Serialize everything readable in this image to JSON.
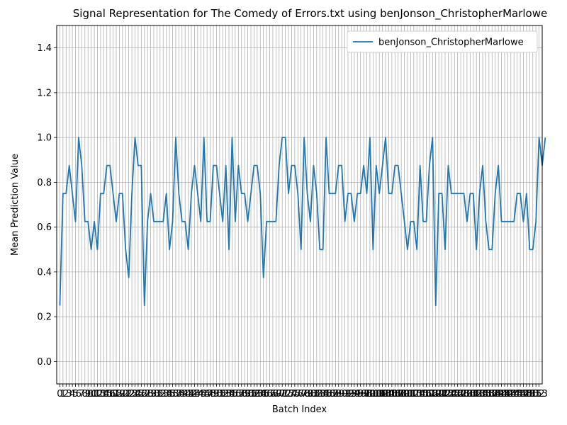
{
  "chart_data": {
    "type": "line",
    "title": "Signal Representation for The Comedy of Errors.txt using benJonson_ChristopherMarlowe",
    "xlabel": "Batch Index",
    "ylabel": "Mean Prediction Value",
    "ylim": [
      -0.1,
      1.5
    ],
    "xlim": [
      -1,
      154
    ],
    "yticks": [
      "0.0",
      "0.2",
      "0.4",
      "0.6",
      "0.8",
      "1.0",
      "1.2",
      "1.4"
    ],
    "x_tick_labels": [
      "0",
      "1",
      "2",
      "3",
      "4",
      "5",
      "6",
      "7",
      "8",
      "9",
      "10",
      "11",
      "12",
      "13",
      "14",
      "15",
      "16",
      "17",
      "18",
      "19",
      "20",
      "21",
      "22",
      "23",
      "24",
      "25",
      "26",
      "27",
      "28",
      "29",
      "30",
      "31",
      "32",
      "33",
      "34",
      "35",
      "36",
      "37",
      "38",
      "39",
      "40",
      "41",
      "42",
      "43",
      "44",
      "45",
      "46",
      "47",
      "48",
      "49",
      "50",
      "51",
      "52",
      "53",
      "54",
      "55",
      "56",
      "57",
      "58",
      "59",
      "60",
      "61",
      "62",
      "63",
      "64",
      "65",
      "66",
      "67",
      "68",
      "69",
      "70",
      "71",
      "72",
      "73",
      "74",
      "75",
      "76",
      "77",
      "78",
      "79",
      "80",
      "81",
      "82",
      "83",
      "84",
      "85",
      "86",
      "87",
      "88",
      "89",
      "90",
      "91",
      "92",
      "93",
      "94",
      "95",
      "96",
      "97",
      "98",
      "99",
      "100",
      "101",
      "102",
      "103",
      "104",
      "105",
      "106",
      "107",
      "108",
      "109",
      "110",
      "111",
      "112",
      "113",
      "114",
      "115",
      "116",
      "117",
      "118",
      "119",
      "120",
      "121",
      "122",
      "123",
      "124",
      "125",
      "126",
      "127",
      "128",
      "129",
      "130",
      "131",
      "132",
      "133",
      "134",
      "135",
      "136",
      "137",
      "138",
      "139",
      "140",
      "141",
      "142",
      "143",
      "144",
      "145",
      "146",
      "147",
      "148",
      "149",
      "150",
      "151",
      "152",
      "153"
    ],
    "grid": true,
    "legend_position": "upper right",
    "series": [
      {
        "name": "benJonson_ChristopherMarlowe",
        "color": "#1f77b4",
        "values": [
          0.25,
          0.75,
          0.75,
          0.875,
          0.75,
          0.625,
          1.0,
          0.875,
          0.625,
          0.625,
          0.5,
          0.625,
          0.5,
          0.75,
          0.75,
          0.875,
          0.875,
          0.75,
          0.625,
          0.75,
          0.75,
          0.5,
          0.375,
          0.75,
          1.0,
          0.875,
          0.875,
          0.25,
          0.625,
          0.75,
          0.625,
          0.625,
          0.625,
          0.625,
          0.75,
          0.5,
          0.625,
          1.0,
          0.75,
          0.625,
          0.625,
          0.5,
          0.75,
          0.875,
          0.75,
          0.625,
          1.0,
          0.625,
          0.625,
          0.875,
          0.875,
          0.75,
          0.625,
          0.875,
          0.5,
          1.0,
          0.625,
          0.875,
          0.75,
          0.75,
          0.625,
          0.75,
          0.875,
          0.875,
          0.75,
          0.375,
          0.625,
          0.625,
          0.625,
          0.625,
          0.875,
          1.0,
          1.0,
          0.75,
          0.875,
          0.875,
          0.75,
          0.5,
          1.0,
          0.75,
          0.625,
          0.875,
          0.75,
          0.5,
          0.5,
          1.0,
          0.75,
          0.75,
          0.75,
          0.875,
          0.875,
          0.625,
          0.75,
          0.75,
          0.625,
          0.75,
          0.75,
          0.875,
          0.75,
          1.0,
          0.5,
          0.875,
          0.75,
          0.875,
          1.0,
          0.75,
          0.75,
          0.875,
          0.875,
          0.75,
          0.625,
          0.5,
          0.625,
          0.625,
          0.5,
          0.875,
          0.625,
          0.625,
          0.875,
          1.0,
          0.25,
          0.75,
          0.75,
          0.5,
          0.875,
          0.75,
          0.75,
          0.75,
          0.75,
          0.75,
          0.625,
          0.75,
          0.75,
          0.5,
          0.75,
          0.875,
          0.625,
          0.5,
          0.5,
          0.75,
          0.875,
          0.625,
          0.625,
          0.625,
          0.625,
          0.625,
          0.75,
          0.75,
          0.625,
          0.75,
          0.5,
          0.5,
          0.625,
          1.0,
          0.875,
          1.0
        ]
      }
    ]
  }
}
